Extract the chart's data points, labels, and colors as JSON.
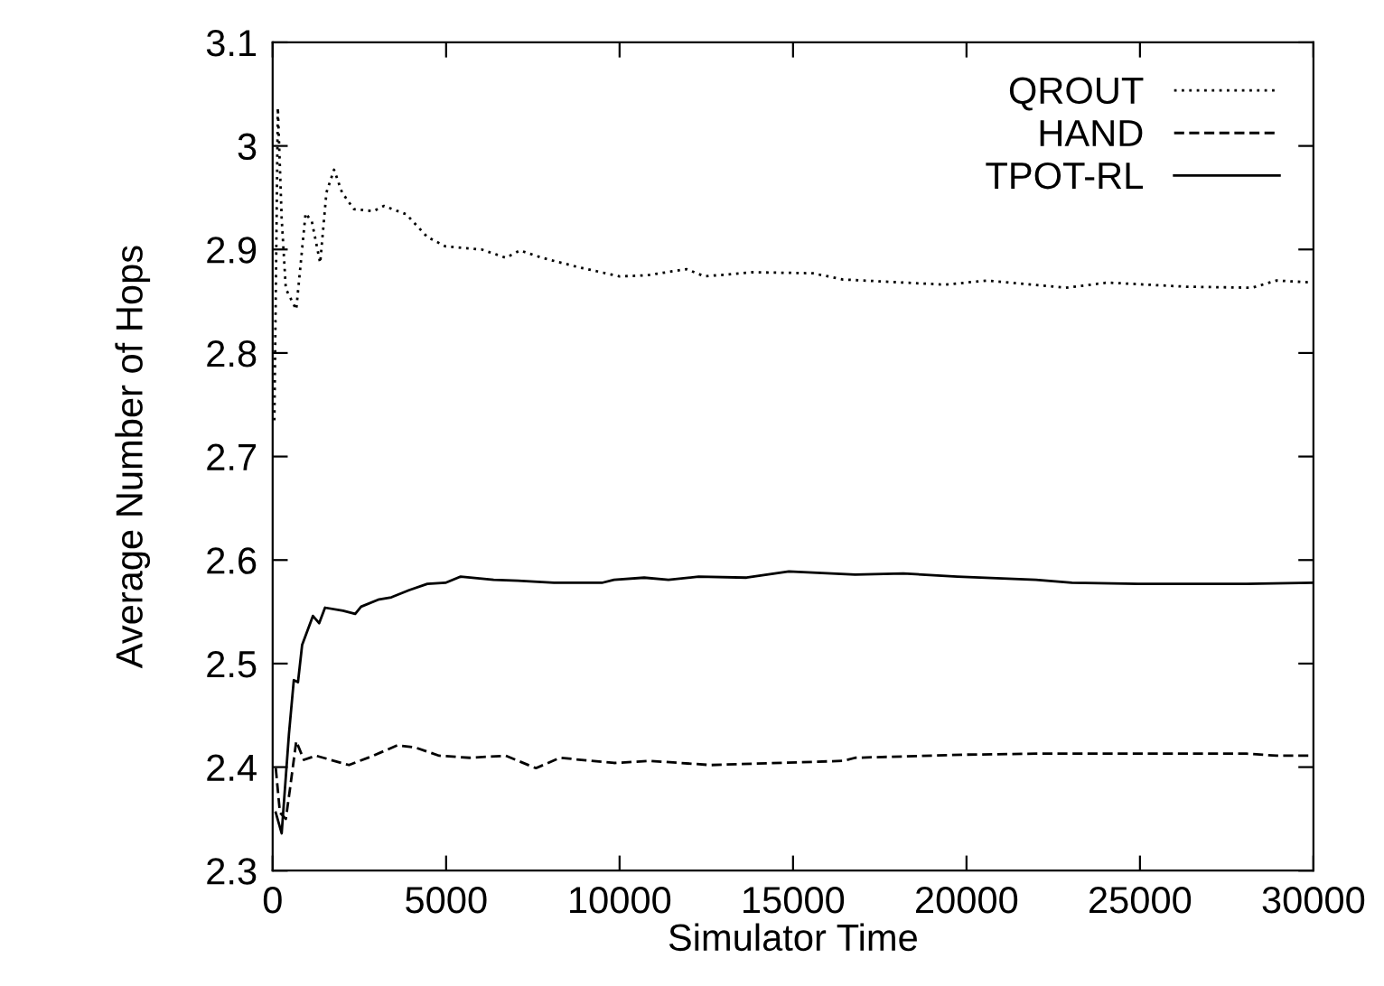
{
  "chart_data": {
    "type": "line",
    "xlabel": "Simulator Time",
    "ylabel": "Average Number of Hops",
    "xlim": [
      0,
      30000
    ],
    "ylim": [
      2.3,
      3.1
    ],
    "xticks": [
      0,
      5000,
      10000,
      15000,
      20000,
      25000,
      30000
    ],
    "yticks": [
      2.3,
      2.4,
      2.5,
      2.6,
      2.7,
      2.8,
      2.9,
      3,
      3.1
    ],
    "grid": false,
    "legend": "top right",
    "marker": "none",
    "series": [
      {
        "name": "QROUT",
        "color": "#000000",
        "line_style": "dotted",
        "x": [
          50,
          150,
          260,
          380,
          680,
          950,
          1130,
          1370,
          1550,
          1770,
          2000,
          2340,
          2900,
          3210,
          3850,
          4460,
          4980,
          6020,
          6720,
          7130,
          7760,
          8800,
          10000,
          10780,
          11930,
          12450,
          13840,
          15570,
          16440,
          19380,
          20610,
          22860,
          24070,
          26340,
          28230,
          28940,
          30000
        ],
        "values": [
          2.735,
          3.037,
          2.93,
          2.862,
          2.842,
          2.935,
          2.927,
          2.887,
          2.955,
          2.977,
          2.955,
          2.939,
          2.937,
          2.942,
          2.934,
          2.912,
          2.903,
          2.9,
          2.892,
          2.899,
          2.892,
          2.883,
          2.874,
          2.875,
          2.881,
          2.874,
          2.878,
          2.877,
          2.871,
          2.866,
          2.87,
          2.863,
          2.868,
          2.864,
          2.863,
          2.87,
          2.868
        ]
      },
      {
        "name": "HAND",
        "color": "#000000",
        "line_style": "dashed",
        "x": [
          90,
          210,
          380,
          500,
          680,
          900,
          1250,
          2200,
          2900,
          3590,
          4110,
          4800,
          5680,
          6720,
          7590,
          8280,
          9840,
          10890,
          12620,
          16440,
          16790,
          19910,
          22000,
          25470,
          28070,
          28940,
          30000
        ],
        "values": [
          2.399,
          2.356,
          2.35,
          2.379,
          2.425,
          2.407,
          2.411,
          2.402,
          2.411,
          2.421,
          2.419,
          2.411,
          2.409,
          2.411,
          2.399,
          2.409,
          2.404,
          2.406,
          2.402,
          2.406,
          2.409,
          2.412,
          2.413,
          2.413,
          2.413,
          2.411,
          2.411
        ]
      },
      {
        "name": "TPOT-RL",
        "color": "#000000",
        "line_style": "solid",
        "x": [
          90,
          260,
          470,
          610,
          730,
          850,
          1160,
          1340,
          1510,
          2030,
          2380,
          2550,
          3070,
          3420,
          3940,
          4460,
          4980,
          5420,
          6370,
          7070,
          8110,
          9490,
          9840,
          10710,
          11410,
          12280,
          13660,
          14880,
          16790,
          18180,
          19740,
          22000,
          23040,
          24950,
          28070,
          30000
        ],
        "values": [
          2.356,
          2.336,
          2.432,
          2.484,
          2.482,
          2.518,
          2.546,
          2.539,
          2.554,
          2.551,
          2.548,
          2.555,
          2.562,
          2.564,
          2.571,
          2.577,
          2.578,
          2.584,
          2.581,
          2.58,
          2.578,
          2.578,
          2.581,
          2.583,
          2.581,
          2.584,
          2.583,
          2.589,
          2.586,
          2.587,
          2.584,
          2.581,
          2.578,
          2.577,
          2.577,
          2.578
        ]
      }
    ]
  }
}
